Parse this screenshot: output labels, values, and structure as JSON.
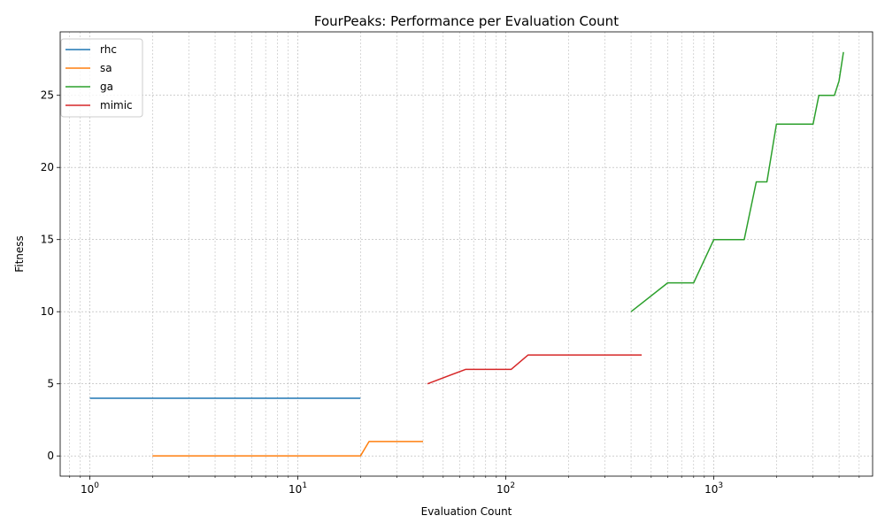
{
  "chart_data": {
    "type": "line",
    "title": "FourPeaks: Performance per Evaluation Count",
    "xlabel": "Evaluation Count",
    "ylabel": "Fitness",
    "xscale": "log",
    "xlim": [
      0.72,
      5800
    ],
    "ylim": [
      -1.4,
      29.4
    ],
    "xticks": [
      {
        "value": 1,
        "base": "10",
        "exp": "0"
      },
      {
        "value": 10,
        "base": "10",
        "exp": "1"
      },
      {
        "value": 100,
        "base": "10",
        "exp": "2"
      },
      {
        "value": 1000,
        "base": "10",
        "exp": "3"
      }
    ],
    "yticks": [
      0,
      5,
      10,
      15,
      20,
      25
    ],
    "grid": true,
    "legend": "top-left",
    "series": [
      {
        "name": "rhc",
        "color": "#1f77b4",
        "x": [
          1,
          2,
          5,
          10,
          20
        ],
        "y": [
          4,
          4,
          4,
          4,
          4
        ]
      },
      {
        "name": "sa",
        "color": "#ff7f0e",
        "x": [
          2,
          5,
          10,
          20,
          22,
          30,
          40
        ],
        "y": [
          0,
          0,
          0,
          0,
          1,
          1,
          1
        ]
      },
      {
        "name": "ga",
        "color": "#2ca02c",
        "x": [
          400,
          600,
          800,
          1000,
          1400,
          1600,
          1800,
          2000,
          3000,
          3200,
          3800,
          4000,
          4200
        ],
        "y": [
          10,
          12,
          12,
          15,
          15,
          19,
          19,
          23,
          23,
          25,
          25,
          26,
          28
        ]
      },
      {
        "name": "mimic",
        "color": "#d62728",
        "x": [
          42,
          64,
          106,
          128,
          450
        ],
        "y": [
          5,
          6,
          6,
          7,
          7
        ]
      }
    ]
  }
}
